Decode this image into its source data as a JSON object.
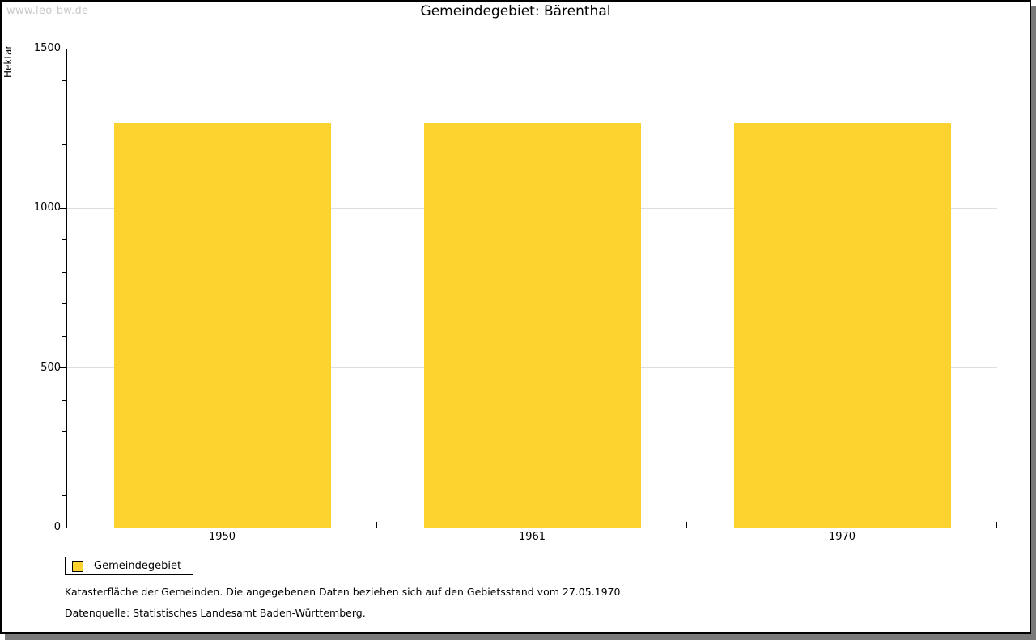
{
  "watermark": "www.leo-bw.de",
  "chart_data": {
    "type": "bar",
    "title": "Gemeindegebiet: Bärenthal",
    "ylabel": "Hektar",
    "xlabel": "",
    "categories": [
      "1950",
      "1961",
      "1970"
    ],
    "series": [
      {
        "name": "Gemeindegebiet",
        "values": [
          1268,
          1268,
          1268
        ]
      }
    ],
    "ylim": [
      0,
      1500
    ],
    "y_major_ticks": [
      0,
      500,
      1000,
      1500
    ],
    "y_minor_step": 100,
    "grid": true,
    "legend_position": "bottom-left",
    "bar_color": "#FCD32E",
    "gridline_color": "#DDDDDD"
  },
  "legend": {
    "label": "Gemeindegebiet"
  },
  "footer": {
    "line1": "Katasterfläche der Gemeinden. Die angegebenen Daten beziehen sich auf den Gebietsstand vom 27.05.1970.",
    "line2": "Datenquelle: Statistisches Landesamt Baden-Württemberg."
  }
}
